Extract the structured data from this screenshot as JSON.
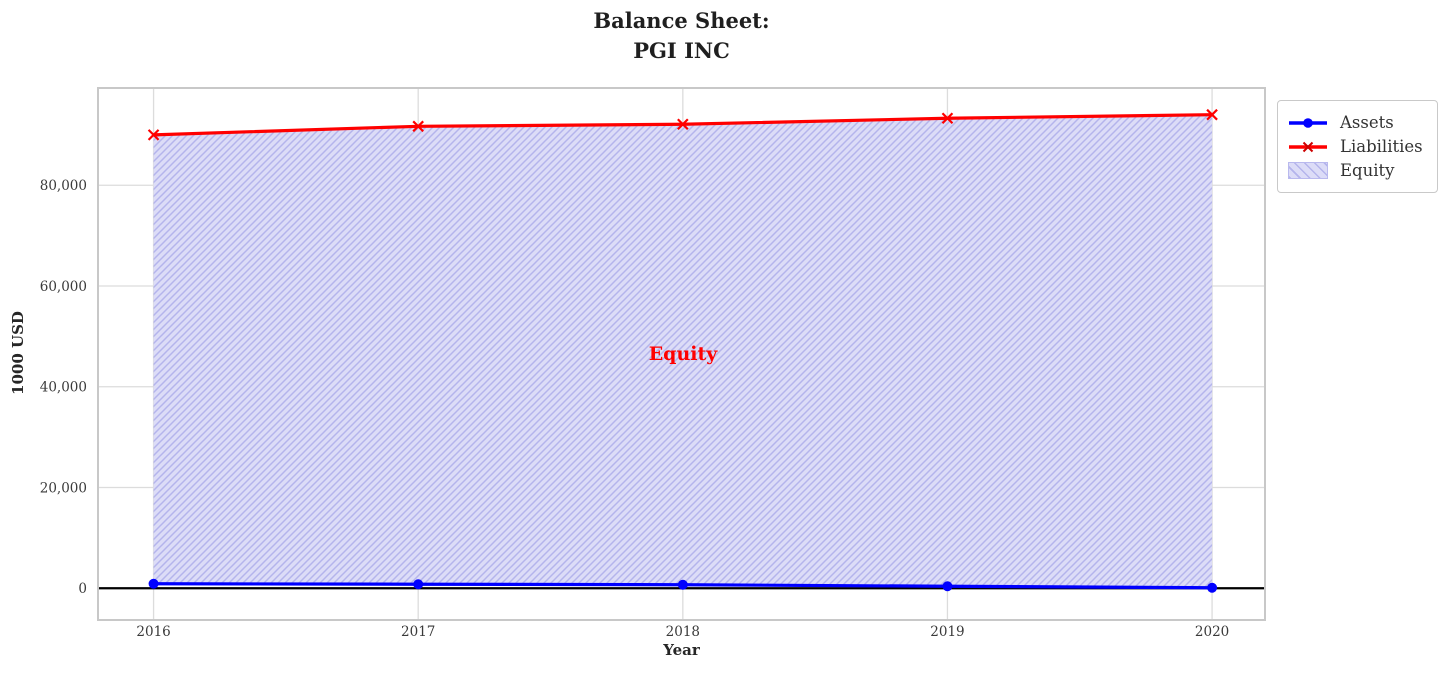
{
  "title": "Balance Sheet:\nPGI INC",
  "annotation": {
    "text": "Equity",
    "color": "#ff0000"
  },
  "legend": {
    "items": [
      {
        "label": "Assets",
        "icon": "blue-line-circle-marker"
      },
      {
        "label": "Liabilities",
        "icon": "red-line-x-marker"
      },
      {
        "label": "Equity",
        "icon": "hatched-patch"
      }
    ]
  },
  "chart_data": {
    "type": "line",
    "title": "Balance Sheet: PGI INC",
    "xlabel": "Year",
    "ylabel": "1000 USD",
    "x": [
      2016,
      2017,
      2018,
      2019,
      2020
    ],
    "series": [
      {
        "name": "Assets",
        "color": "#0000ff",
        "marker": "circle",
        "values": [
          900,
          800,
          700,
          400,
          100
        ]
      },
      {
        "name": "Liabilities",
        "color": "#ff0000",
        "marker": "x",
        "values": [
          90000,
          91700,
          92100,
          93300,
          94000
        ]
      }
    ],
    "fill_between": {
      "name": "Equity",
      "between": [
        "Assets",
        "Liabilities"
      ],
      "fill_color": "#dcdcf7",
      "hatch": "//",
      "hatch_color": "#b4b4ec"
    },
    "yticks": [
      0,
      20000,
      40000,
      60000,
      80000
    ],
    "ytick_labels": [
      "0",
      "20,000",
      "40,000",
      "60,000",
      "80,000"
    ],
    "xtick_labels": [
      "2016",
      "2017",
      "2018",
      "2019",
      "2020"
    ],
    "xlim": [
      2015.79,
      2020.2
    ],
    "ylim": [
      -6300,
      99300
    ],
    "grid": true,
    "grid_color": "#dcdcdc",
    "spine_color": "#c8c8c8",
    "zero_line": {
      "show": true,
      "color": "#000000"
    },
    "legend_position": "outside upper right",
    "tick_color": "#3a3a3a"
  }
}
